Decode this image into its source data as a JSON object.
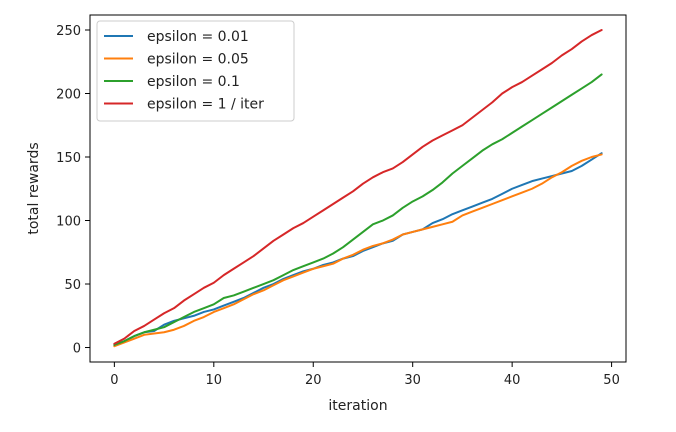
{
  "chart_data": {
    "type": "line",
    "title": "",
    "xlabel": "iteration",
    "ylabel": "total rewards",
    "xlim": [
      -2.45,
      51.45
    ],
    "ylim": [
      -11.4,
      261.8
    ],
    "xticks": [
      0,
      10,
      20,
      30,
      40,
      50
    ],
    "yticks": [
      0,
      50,
      100,
      150,
      200,
      250
    ],
    "grid": false,
    "legend": "upper-left",
    "x": [
      0,
      1,
      2,
      3,
      4,
      5,
      6,
      7,
      8,
      9,
      10,
      11,
      12,
      13,
      14,
      15,
      16,
      17,
      18,
      19,
      20,
      21,
      22,
      23,
      24,
      25,
      26,
      27,
      28,
      29,
      30,
      31,
      32,
      33,
      34,
      35,
      36,
      37,
      38,
      39,
      40,
      41,
      42,
      43,
      44,
      45,
      46,
      47,
      48,
      49
    ],
    "series": [
      {
        "name": "epsilon = 0.01",
        "color": "#1f77b4",
        "values": [
          2,
          5,
          9,
          12,
          13,
          18,
          21,
          23,
          25,
          28,
          30,
          33,
          36,
          39,
          43,
          47,
          50,
          54,
          57,
          60,
          62,
          65,
          67,
          70,
          72,
          76,
          79,
          82,
          84,
          89,
          91,
          93,
          98,
          101,
          105,
          108,
          111,
          114,
          117,
          121,
          125,
          128,
          131,
          133,
          135,
          137,
          139,
          143,
          148,
          153
        ]
      },
      {
        "name": "epsilon = 0.05",
        "color": "#ff7f0e",
        "values": [
          1,
          4,
          7,
          10,
          11,
          12,
          14,
          17,
          21,
          24,
          28,
          31,
          34,
          38,
          42,
          45,
          49,
          53,
          56,
          59,
          62,
          64,
          66,
          70,
          73,
          77,
          80,
          82,
          85,
          89,
          91,
          93,
          95,
          97,
          99,
          104,
          107,
          110,
          113,
          116,
          119,
          122,
          125,
          129,
          134,
          138,
          143,
          147,
          150,
          152
        ]
      },
      {
        "name": "epsilon = 0.1",
        "color": "#2ca02c",
        "values": [
          2,
          5,
          9,
          12,
          14,
          16,
          20,
          24,
          28,
          31,
          34,
          39,
          41,
          44,
          47,
          50,
          53,
          57,
          61,
          64,
          67,
          70,
          74,
          79,
          85,
          91,
          97,
          100,
          104,
          110,
          115,
          119,
          124,
          130,
          137,
          143,
          149,
          155,
          160,
          164,
          169,
          174,
          179,
          184,
          189,
          194,
          199,
          204,
          209,
          215
        ]
      },
      {
        "name": "epsilon = 1 / iter",
        "color": "#d62728",
        "values": [
          3,
          7,
          13,
          17,
          22,
          27,
          31,
          37,
          42,
          47,
          51,
          57,
          62,
          67,
          72,
          78,
          84,
          89,
          94,
          98,
          103,
          108,
          113,
          118,
          123,
          129,
          134,
          138,
          141,
          146,
          152,
          158,
          163,
          167,
          171,
          175,
          181,
          187,
          193,
          200,
          205,
          209,
          214,
          219,
          224,
          230,
          235,
          241,
          246,
          250
        ]
      }
    ]
  }
}
